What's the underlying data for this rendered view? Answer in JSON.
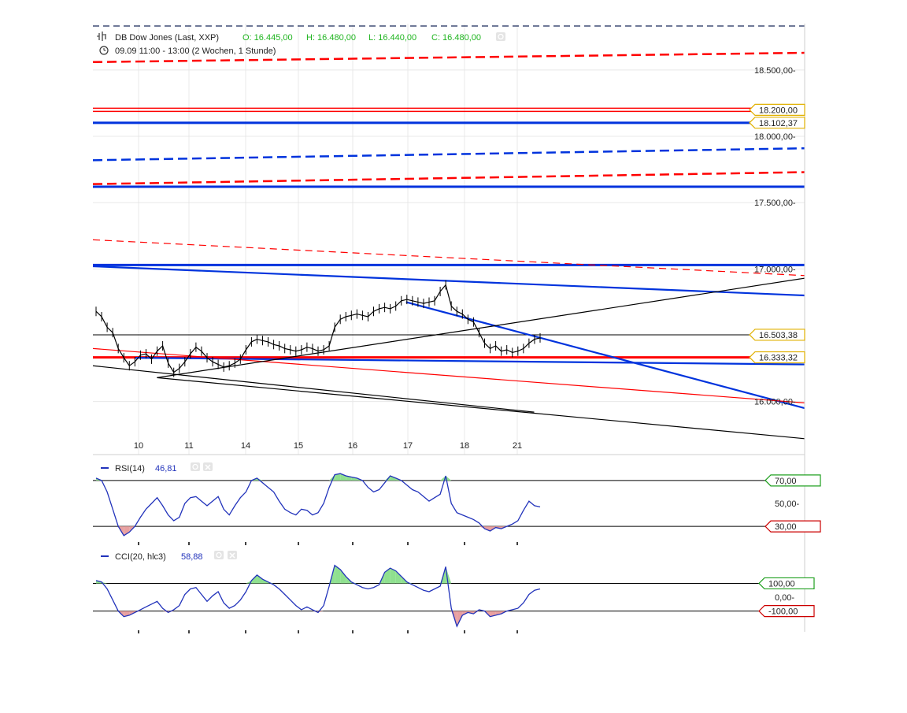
{
  "header": {
    "instrument": "DB Dow Jones (Last, XXP)",
    "open": "O: 16.445,00",
    "high": "H: 16.480,00",
    "low": "L: 16.440,00",
    "close": "C: 16.480,00",
    "period": "09.09 11:00 - 13:00 (2 Wochen, 1 Stunde)"
  },
  "colors": {
    "red": "#ff0000",
    "blue": "#0033dd",
    "grid": "#e8e8e8",
    "ohlc_green": "#1fb41f",
    "rsi_line": "#2233bb",
    "overbought_fill": "#8fe08f",
    "oversold_fill": "#e8a0a0",
    "marker_yellow": "#e0b000",
    "marker_green": "#1f9f1f",
    "marker_red": "#cc0000"
  },
  "chart_data": [
    {
      "type": "line",
      "panel": "price",
      "y_tick_labels": [
        "18.500,00",
        "18.000,00",
        "17.500,00",
        "17.000,00",
        "16.000,00"
      ],
      "y_ticks": [
        18500,
        18000,
        17500,
        17000,
        16000
      ],
      "ylim": [
        15600,
        18850
      ],
      "x_tick_labels": [
        "10",
        "11",
        "14",
        "15",
        "16",
        "17",
        "18",
        "21"
      ],
      "price_markers": [
        {
          "label": "18.200,00",
          "value": 18200,
          "color": "#e0b000"
        },
        {
          "label": "18.102,37",
          "value": 18102.37,
          "color": "#e0b000"
        },
        {
          "label": "16.503,38",
          "value": 16503.38,
          "color": "#e0b000"
        },
        {
          "label": "16.333,32",
          "value": 16333.32,
          "color": "#e0b000"
        }
      ],
      "horizontal_lines": [
        {
          "value": 18200,
          "color": "#ff0000",
          "style": "double"
        },
        {
          "value": 18102.37,
          "color": "#0033dd",
          "style": "solid"
        },
        {
          "value": 17620,
          "color": "#0033dd",
          "style": "solid"
        },
        {
          "value": 17030,
          "color": "#0033dd",
          "style": "solid"
        },
        {
          "value": 16503.38,
          "color": "#000000",
          "style": "thin"
        },
        {
          "value": 16333.32,
          "color": "#ff0000",
          "style": "solid"
        }
      ],
      "trend_lines": [
        {
          "from": [
            0,
            18560
          ],
          "to": [
            1,
            18630
          ],
          "color": "#ff0000",
          "style": "dashed"
        },
        {
          "from": [
            0,
            17820
          ],
          "to": [
            1,
            17910
          ],
          "color": "#0033dd",
          "style": "dashed"
        },
        {
          "from": [
            0,
            17640
          ],
          "to": [
            1,
            17730
          ],
          "color": "#ff0000",
          "style": "dashed"
        },
        {
          "from": [
            0,
            17220
          ],
          "to": [
            1,
            16950
          ],
          "color": "#ff0000",
          "style": "dashed-thin"
        },
        {
          "from": [
            0,
            17020
          ],
          "to": [
            1,
            16800
          ],
          "color": "#0033dd",
          "style": "solid"
        },
        {
          "from": [
            0.06,
            16330
          ],
          "to": [
            1,
            16280
          ],
          "color": "#0033dd",
          "style": "solid"
        },
        {
          "from": [
            0.44,
            16750
          ],
          "to": [
            1,
            15950
          ],
          "color": "#0033dd",
          "style": "solid"
        },
        {
          "from": [
            0,
            16400
          ],
          "to": [
            1,
            15990
          ],
          "color": "#ff0000",
          "style": "thin"
        },
        {
          "from": [
            0,
            16270
          ],
          "to": [
            0.62,
            15920
          ],
          "color": "#000000",
          "style": "thin"
        },
        {
          "from": [
            0.09,
            16180
          ],
          "to": [
            1,
            16930
          ],
          "color": "#000000",
          "style": "thin"
        },
        {
          "from": [
            0.09,
            16180
          ],
          "to": [
            1,
            15720
          ],
          "color": "#000000",
          "style": "thin"
        }
      ],
      "series": [
        {
          "values": [
            16680,
            16640,
            16560,
            16520,
            16400,
            16330,
            16270,
            16300,
            16350,
            16360,
            16320,
            16380,
            16420,
            16290,
            16220,
            16250,
            16300,
            16360,
            16410,
            16380,
            16330,
            16300,
            16280,
            16260,
            16270,
            16290,
            16320,
            16390,
            16450,
            16470,
            16460,
            16450,
            16430,
            16420,
            16400,
            16390,
            16380,
            16390,
            16410,
            16400,
            16380,
            16390,
            16420,
            16560,
            16620,
            16640,
            16650,
            16660,
            16650,
            16640,
            16680,
            16700,
            16710,
            16700,
            16720,
            16760,
            16770,
            16760,
            16750,
            16740,
            16750,
            16760,
            16830,
            16880,
            16720,
            16680,
            16660,
            16620,
            16600,
            16520,
            16440,
            16400,
            16420,
            16380,
            16390,
            16370,
            16380,
            16400,
            16440,
            16470,
            16480
          ]
        }
      ]
    },
    {
      "type": "line",
      "panel": "rsi",
      "title": "RSI(14)",
      "current_value": "46,81",
      "ylim": [
        15,
        85
      ],
      "y_tick_labels": [
        "70,00",
        "50,00",
        "30,00"
      ],
      "y_ticks": [
        70,
        50,
        30
      ],
      "markers": [
        {
          "label": "70,00",
          "value": 70,
          "color": "#1f9f1f"
        },
        {
          "label": "30,00",
          "value": 30,
          "color": "#cc0000"
        }
      ],
      "series": [
        {
          "values": [
            72,
            70,
            60,
            45,
            30,
            22,
            25,
            30,
            38,
            45,
            50,
            55,
            48,
            40,
            35,
            38,
            50,
            55,
            56,
            52,
            48,
            52,
            56,
            45,
            40,
            48,
            55,
            60,
            70,
            72,
            68,
            64,
            60,
            52,
            45,
            42,
            40,
            45,
            44,
            40,
            42,
            50,
            64,
            75,
            76,
            74,
            73,
            72,
            70,
            64,
            60,
            62,
            68,
            74,
            72,
            70,
            66,
            62,
            60,
            56,
            52,
            55,
            58,
            74,
            50,
            42,
            40,
            38,
            36,
            33,
            28,
            26,
            29,
            28,
            30,
            32,
            35,
            44,
            52,
            48,
            47
          ]
        }
      ]
    },
    {
      "type": "line",
      "panel": "cci",
      "title": "CCI(20, hlc3)",
      "current_value": "58,88",
      "ylim": [
        -250,
        330
      ],
      "y_tick_labels": [
        "100,00",
        "0,00",
        "-100,00"
      ],
      "y_ticks": [
        100,
        0,
        -100
      ],
      "markers": [
        {
          "label": "100,00",
          "value": 100,
          "color": "#1f9f1f"
        },
        {
          "label": "0,00",
          "value": 0,
          "color": "#ffffff"
        },
        {
          "label": "-100,00",
          "value": -100,
          "color": "#cc0000"
        }
      ],
      "series": [
        {
          "values": [
            120,
            110,
            60,
            -20,
            -100,
            -140,
            -130,
            -110,
            -90,
            -70,
            -50,
            -30,
            -80,
            -110,
            -90,
            -60,
            20,
            60,
            70,
            20,
            -30,
            10,
            40,
            -40,
            -80,
            -60,
            -20,
            40,
            120,
            160,
            130,
            110,
            90,
            60,
            20,
            -20,
            -60,
            -90,
            -70,
            -90,
            -110,
            -60,
            80,
            230,
            200,
            150,
            110,
            90,
            70,
            60,
            70,
            90,
            180,
            210,
            190,
            150,
            110,
            90,
            70,
            50,
            40,
            60,
            80,
            220,
            -80,
            -210,
            -130,
            -110,
            -120,
            -90,
            -100,
            -140,
            -130,
            -120,
            -100,
            -90,
            -80,
            -40,
            20,
            50,
            60
          ]
        }
      ]
    }
  ]
}
